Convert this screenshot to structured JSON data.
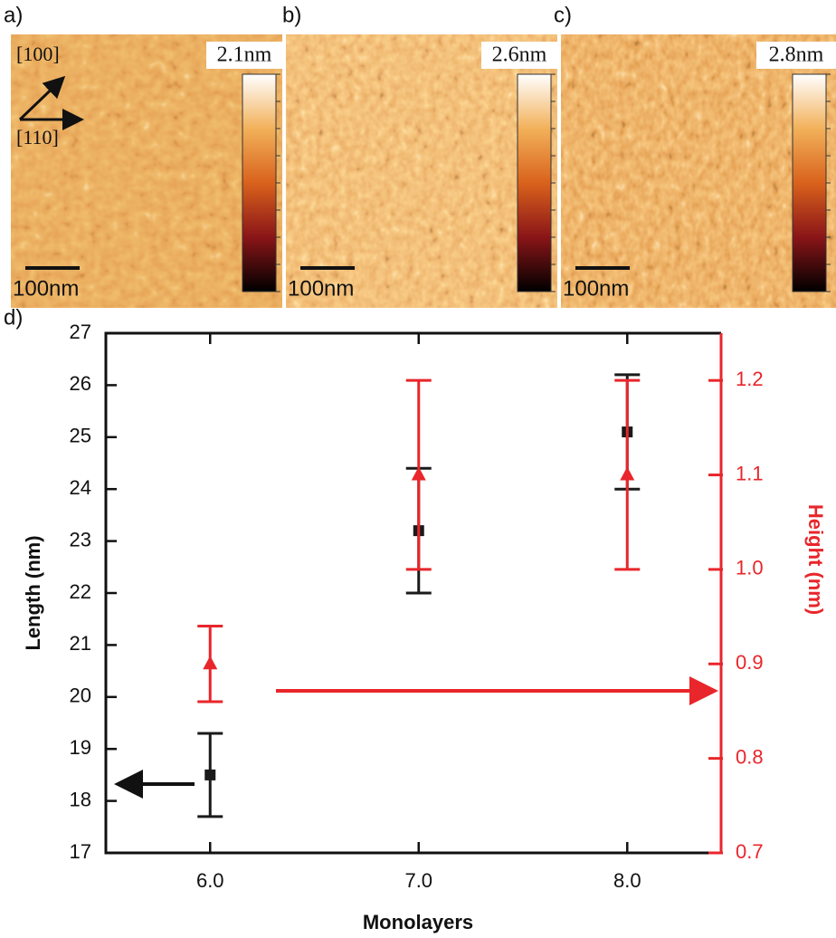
{
  "panels": [
    {
      "label": "a)",
      "scale_max": "2.1nm",
      "scale_bar": "100nm"
    },
    {
      "label": "b)",
      "scale_max": "2.6nm",
      "scale_bar": "100nm"
    },
    {
      "label": "c)",
      "scale_max": "2.8nm",
      "scale_bar": "100nm"
    }
  ],
  "directions": [
    "[100]",
    "[110]"
  ],
  "chart_data": {
    "type": "errorbar",
    "panel_label": "d)",
    "x_label": "Monolayers",
    "y_label": "Length (nm)",
    "y2_label": "Height (nm)",
    "x": [
      6,
      7,
      8
    ],
    "xlim": [
      5.5,
      8.45
    ],
    "xticks": [
      {
        "value": 6,
        "label": "6.0"
      },
      {
        "value": 7,
        "label": "7.0"
      },
      {
        "value": 8,
        "label": "8.0"
      }
    ],
    "ylim": [
      17,
      27
    ],
    "yticks": [
      17,
      18,
      19,
      20,
      21,
      22,
      23,
      24,
      25,
      26,
      27
    ],
    "y2lim": [
      0.7,
      1.25
    ],
    "y2ticks": [
      0.7,
      0.8,
      0.9,
      {
        "value": 1.0,
        "label": "1.0"
      },
      1.1,
      1.2
    ],
    "series": [
      {
        "color": "#1a1a1a",
        "marker": "square",
        "values": [
          18.5,
          23.2,
          25.1
        ],
        "errors": [
          0.8,
          1.2,
          1.1
        ]
      },
      {
        "color": "#e8262b",
        "marker": "triangle",
        "axis": "y2",
        "values": [
          0.9,
          1.1,
          1.1
        ],
        "errors": [
          0.04,
          0.1,
          0.1
        ]
      }
    ]
  }
}
